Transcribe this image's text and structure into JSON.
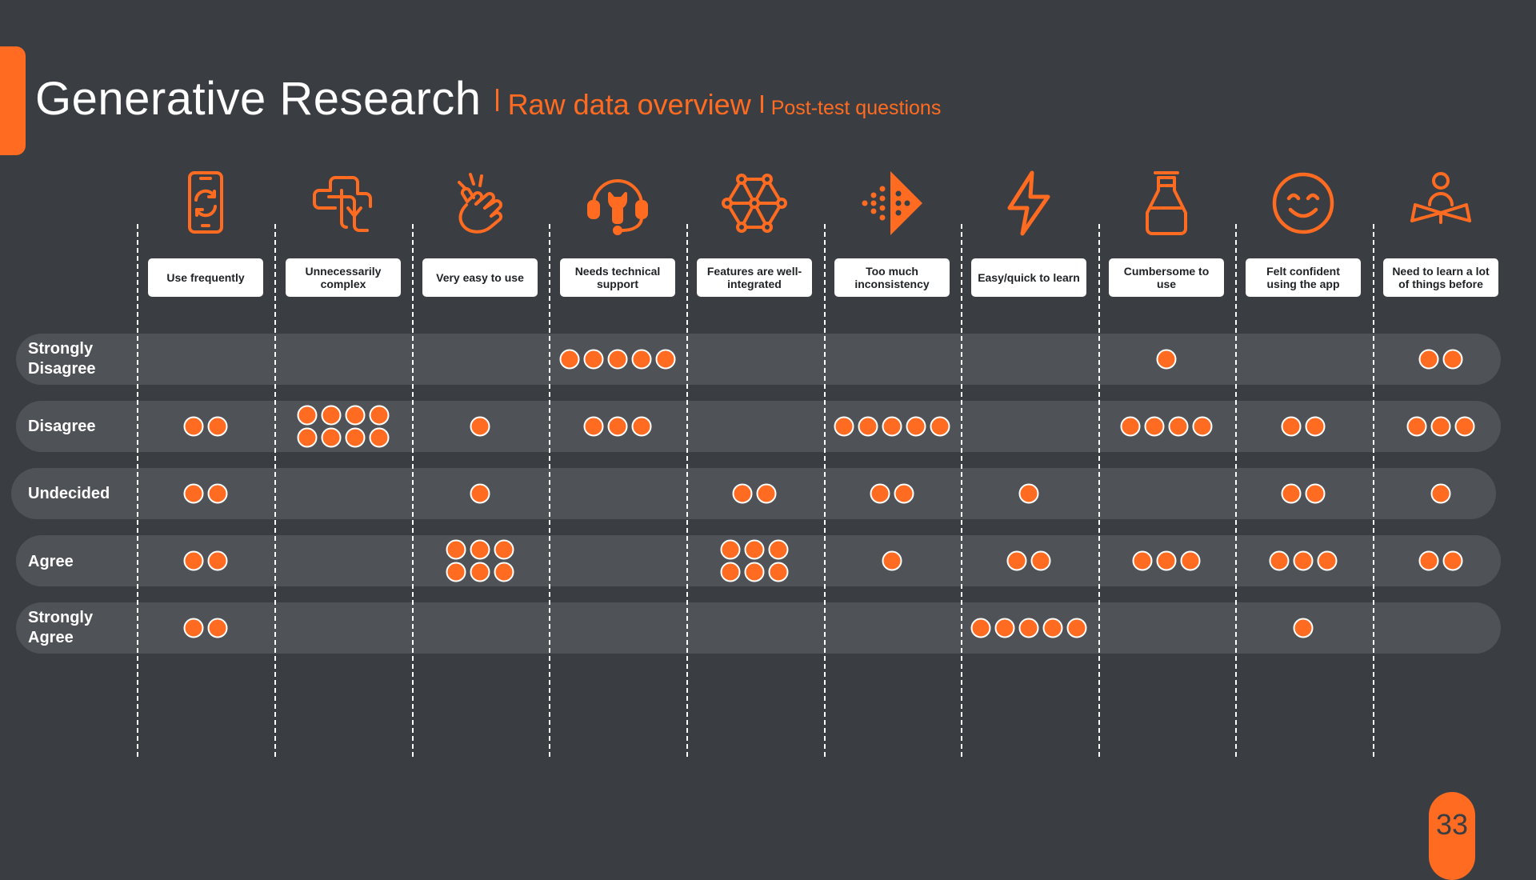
{
  "title": {
    "main": "Generative Research",
    "subtitle": "Raw data overview",
    "section": "Post-test questions"
  },
  "page_number": "33",
  "colors": {
    "accent": "#ff6b21",
    "background": "#3a3e42",
    "band": "#4f5357"
  },
  "chart_data": {
    "type": "dot-matrix",
    "categories": [
      "Use frequently",
      "Unnecessarily complex",
      "Very easy to use",
      "Needs technical support",
      "Features are well-integrated",
      "Too much inconsistency",
      "Easy/quick to learn",
      "Cumbersome to use",
      "Felt confident using the app",
      "Need to learn a lot of things before"
    ],
    "category_icons": [
      "phone-refresh-icon",
      "tangled-arrow-icon",
      "snap-fingers-icon",
      "support-headset-icon",
      "network-icon",
      "dotted-play-icon",
      "lightning-icon",
      "bottle-icon",
      "smiley-icon",
      "reader-icon"
    ],
    "rows": [
      "Strongly Disagree",
      "Disagree",
      "Undecided",
      "Agree",
      "Strongly Agree"
    ],
    "counts": [
      [
        0,
        0,
        0,
        5,
        0,
        0,
        0,
        1,
        0,
        2
      ],
      [
        2,
        8,
        1,
        3,
        0,
        5,
        0,
        4,
        2,
        3
      ],
      [
        2,
        0,
        1,
        0,
        2,
        2,
        1,
        0,
        2,
        1
      ],
      [
        2,
        0,
        6,
        0,
        6,
        1,
        2,
        3,
        3,
        2
      ],
      [
        2,
        0,
        0,
        0,
        0,
        0,
        5,
        0,
        1,
        0
      ]
    ]
  }
}
